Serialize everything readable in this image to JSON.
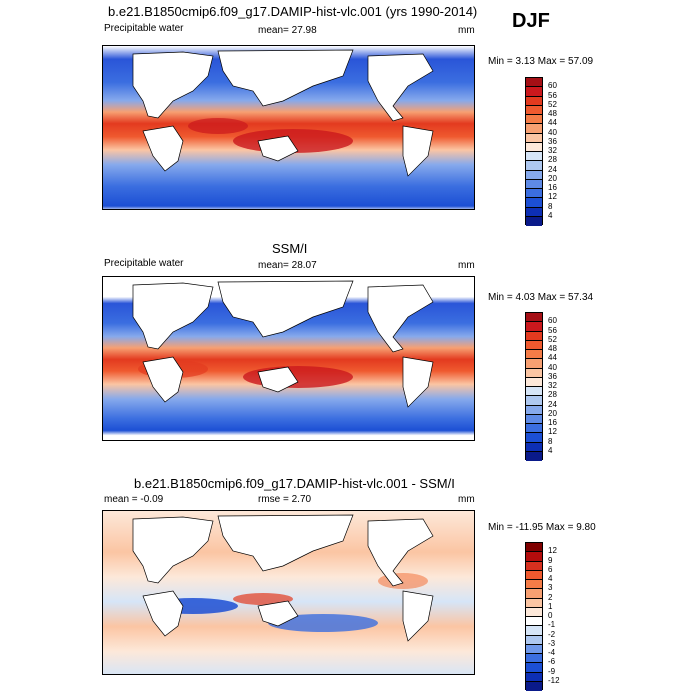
{
  "season": "DJF",
  "panels": [
    {
      "title": "b.e21.B1850cmip6.f09_g17.DAMIP-hist-vlc.001 (yrs 1990-2014)",
      "left_label": "Precipitable water",
      "center_label": "mean=  27.98",
      "unit": "mm",
      "minmax": "Min =   3.13 Max =  57.09",
      "colorbar_labels": [
        "60",
        "56",
        "52",
        "48",
        "44",
        "40",
        "36",
        "32",
        "28",
        "24",
        "20",
        "16",
        "12",
        "8",
        "4"
      ],
      "colorbar_colors": [
        "#a50f15",
        "#cb181d",
        "#e33a1f",
        "#ef5a2f",
        "#f47c47",
        "#f7a072",
        "#fbc5a3",
        "#fde8d9",
        "#d6e5f7",
        "#aec8f0",
        "#86a9ec",
        "#5e8ae6",
        "#3b6ee0",
        "#1c4fd4",
        "#0d2fb5",
        "#0a1a8a"
      ]
    },
    {
      "title": "SSM/I",
      "left_label": "Precipitable water",
      "center_label": "mean=  28.07",
      "unit": "mm",
      "minmax": "Min =   4.03 Max =  57.34",
      "colorbar_labels": [
        "60",
        "56",
        "52",
        "48",
        "44",
        "40",
        "36",
        "32",
        "28",
        "24",
        "20",
        "16",
        "12",
        "8",
        "4"
      ],
      "colorbar_colors": [
        "#a50f15",
        "#cb181d",
        "#e33a1f",
        "#ef5a2f",
        "#f47c47",
        "#f7a072",
        "#fbc5a3",
        "#fde8d9",
        "#d6e5f7",
        "#aec8f0",
        "#86a9ec",
        "#5e8ae6",
        "#3b6ee0",
        "#1c4fd4",
        "#0d2fb5",
        "#0a1a8a"
      ]
    },
    {
      "title": "b.e21.B1850cmip6.f09_g17.DAMIP-hist-vlc.001 - SSM/I",
      "left_label": "mean =  -0.09",
      "center_label": "rmse =    2.70",
      "unit": "mm",
      "minmax": "Min = -11.95 Max =   9.80",
      "colorbar_labels": [
        "12",
        "9",
        "6",
        "4",
        "3",
        "2",
        "1",
        "0",
        "-1",
        "-2",
        "-3",
        "-4",
        "-6",
        "-9",
        "-12"
      ],
      "colorbar_colors": [
        "#7f0000",
        "#b30c0c",
        "#d7301f",
        "#ef5a2f",
        "#f47c47",
        "#f7a072",
        "#fbc5a3",
        "#fde8d9",
        "#ffffff",
        "#d6e5f7",
        "#aec8f0",
        "#6f98ea",
        "#3b6ee0",
        "#1c4fd4",
        "#0d2fb5",
        "#0a1a8a"
      ]
    }
  ]
}
